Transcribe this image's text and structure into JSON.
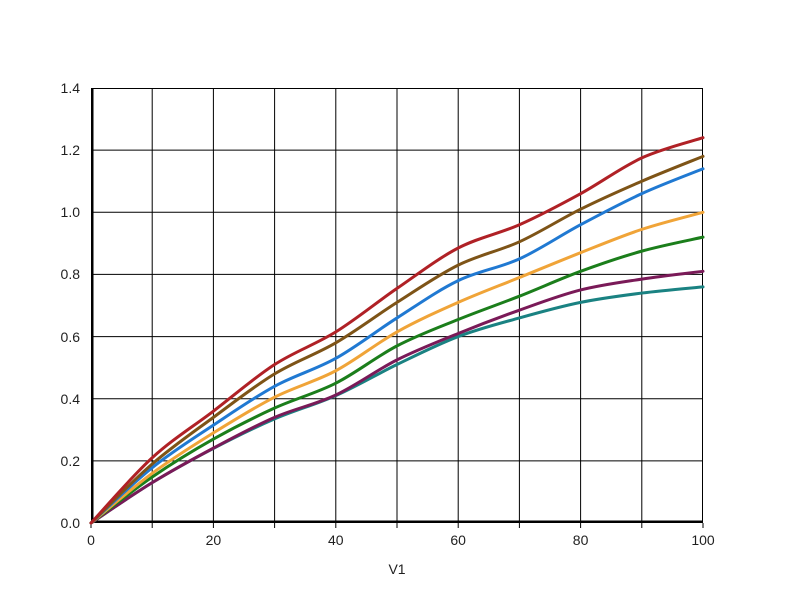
{
  "frame": {
    "background": "#ffffff",
    "grid_color": "#000000",
    "axis_color": "#000000",
    "text_color": "#1f1f1f"
  },
  "chart_data": {
    "type": "line",
    "title": "",
    "xlabel": "V1",
    "ylabel": "",
    "xlim": [
      0,
      100
    ],
    "ylim": [
      0.0,
      1.4
    ],
    "x_grid_step": 10,
    "y_grid_step": 0.2,
    "grid": "on",
    "legend": "none",
    "x_tick_labels": [
      "0",
      "20",
      "40",
      "60",
      "80",
      "100"
    ],
    "x_tick_values": [
      0,
      20,
      40,
      60,
      80,
      100
    ],
    "y_tick_labels": [
      "0.0",
      "0.2",
      "0.4",
      "0.6",
      "0.8",
      "1.0",
      "1.2",
      "1.4"
    ],
    "y_tick_values": [
      0.0,
      0.2,
      0.4,
      0.6,
      0.8,
      1.0,
      1.2,
      1.4
    ],
    "x": [
      0,
      10,
      20,
      30,
      40,
      50,
      60,
      70,
      80,
      90,
      100
    ],
    "series": [
      {
        "name": "teal",
        "color": "#1A8282",
        "values": [
          0,
          0.13,
          0.24,
          0.335,
          0.41,
          0.51,
          0.6,
          0.66,
          0.71,
          0.74,
          0.76
        ]
      },
      {
        "name": "purple",
        "color": "#7A1A58",
        "values": [
          0,
          0.13,
          0.241,
          0.34,
          0.412,
          0.525,
          0.61,
          0.685,
          0.75,
          0.785,
          0.81
        ]
      },
      {
        "name": "green",
        "color": "#1B7E1B",
        "values": [
          0,
          0.148,
          0.27,
          0.37,
          0.45,
          0.57,
          0.655,
          0.73,
          0.81,
          0.875,
          0.92
        ]
      },
      {
        "name": "orange",
        "color": "#F0A438",
        "values": [
          0,
          0.16,
          0.29,
          0.405,
          0.49,
          0.615,
          0.71,
          0.79,
          0.87,
          0.945,
          1.0
        ]
      },
      {
        "name": "blue",
        "color": "#2079D2",
        "values": [
          0,
          0.178,
          0.315,
          0.44,
          0.53,
          0.66,
          0.78,
          0.85,
          0.96,
          1.06,
          1.14
        ]
      },
      {
        "name": "olive-brown",
        "color": "#7E5417",
        "values": [
          0,
          0.19,
          0.34,
          0.48,
          0.58,
          0.71,
          0.83,
          0.905,
          1.01,
          1.1,
          1.18
        ]
      },
      {
        "name": "dark-red",
        "color": "#B02126",
        "values": [
          0,
          0.21,
          0.36,
          0.51,
          0.615,
          0.755,
          0.885,
          0.96,
          1.06,
          1.175,
          1.24
        ]
      }
    ]
  }
}
